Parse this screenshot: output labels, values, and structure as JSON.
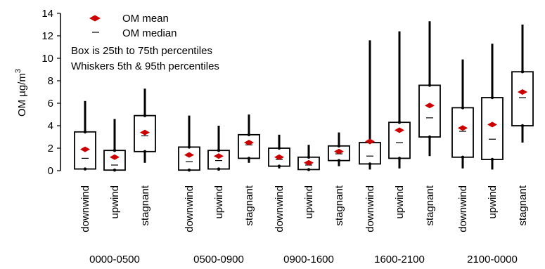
{
  "chart_data": {
    "type": "box",
    "ylabel": "OM µg/m",
    "ylabel_superscript": "3",
    "yticks": [
      0,
      2,
      4,
      6,
      8,
      10,
      12,
      14
    ],
    "ylim": [
      0,
      14
    ],
    "grid": false,
    "legend": {
      "placement": "top-left",
      "mean_label": "OM mean",
      "median_label": "OM median",
      "note_line1": "Box is 25th to 75th percentiles",
      "note_line2": "Whiskers 5th & 95th percentiles"
    },
    "colors": {
      "mean": "#cc0000",
      "box": "#000000"
    },
    "groups": [
      {
        "label": "0000-0500",
        "boxes": [
          {
            "category": "downwind",
            "p5": 0.1,
            "q1": 0.15,
            "median": 1.1,
            "q3": 3.45,
            "p95": 6.2,
            "mean": 1.9
          },
          {
            "category": "upwind",
            "p5": 0.0,
            "q1": 0.05,
            "median": 0.5,
            "q3": 1.8,
            "p95": 4.6,
            "mean": 1.2
          },
          {
            "category": "stagnant",
            "p5": 0.7,
            "q1": 1.7,
            "median": 3.1,
            "q3": 4.9,
            "p95": 7.3,
            "mean": 3.4
          }
        ]
      },
      {
        "label": "0500-0900",
        "boxes": [
          {
            "category": "downwind",
            "p5": 0.0,
            "q1": 0.05,
            "median": 0.8,
            "q3": 2.1,
            "p95": 4.9,
            "mean": 1.4
          },
          {
            "category": "upwind",
            "p5": 0.0,
            "q1": 0.15,
            "median": 0.9,
            "q3": 1.8,
            "p95": 4.0,
            "mean": 1.3
          },
          {
            "category": "stagnant",
            "p5": 0.7,
            "q1": 1.1,
            "median": 2.3,
            "q3": 3.2,
            "p95": 5.0,
            "mean": 2.5
          }
        ]
      },
      {
        "label": "0900-1600",
        "boxes": [
          {
            "category": "downwind",
            "p5": 0.2,
            "q1": 0.4,
            "median": 1.0,
            "q3": 2.0,
            "p95": 3.2,
            "mean": 1.2
          },
          {
            "category": "upwind",
            "p5": 0.0,
            "q1": 0.1,
            "median": 0.5,
            "q3": 1.2,
            "p95": 2.3,
            "mean": 0.7
          },
          {
            "category": "stagnant",
            "p5": 0.4,
            "q1": 0.9,
            "median": 1.5,
            "q3": 2.2,
            "p95": 3.4,
            "mean": 1.7
          }
        ]
      },
      {
        "label": "1600-2100",
        "boxes": [
          {
            "category": "downwind",
            "p5": 0.1,
            "q1": 0.6,
            "median": 1.3,
            "q3": 2.5,
            "p95": 11.6,
            "mean": 2.6
          },
          {
            "category": "upwind",
            "p5": 0.2,
            "q1": 1.1,
            "median": 2.5,
            "q3": 4.3,
            "p95": 12.4,
            "mean": 3.6
          },
          {
            "category": "stagnant",
            "p5": 1.3,
            "q1": 3.0,
            "median": 4.7,
            "q3": 7.6,
            "p95": 13.3,
            "mean": 5.8
          }
        ]
      },
      {
        "label": "2100-0000",
        "boxes": [
          {
            "category": "downwind",
            "p5": 0.2,
            "q1": 1.2,
            "median": 3.5,
            "q3": 5.6,
            "p95": 9.9,
            "mean": 3.8
          },
          {
            "category": "upwind",
            "p5": 0.1,
            "q1": 1.0,
            "median": 2.8,
            "q3": 6.5,
            "p95": 11.3,
            "mean": 4.1
          },
          {
            "category": "stagnant",
            "p5": 2.5,
            "q1": 4.0,
            "median": 6.5,
            "q3": 8.8,
            "p95": 13.0,
            "mean": 7.0
          }
        ]
      }
    ]
  }
}
